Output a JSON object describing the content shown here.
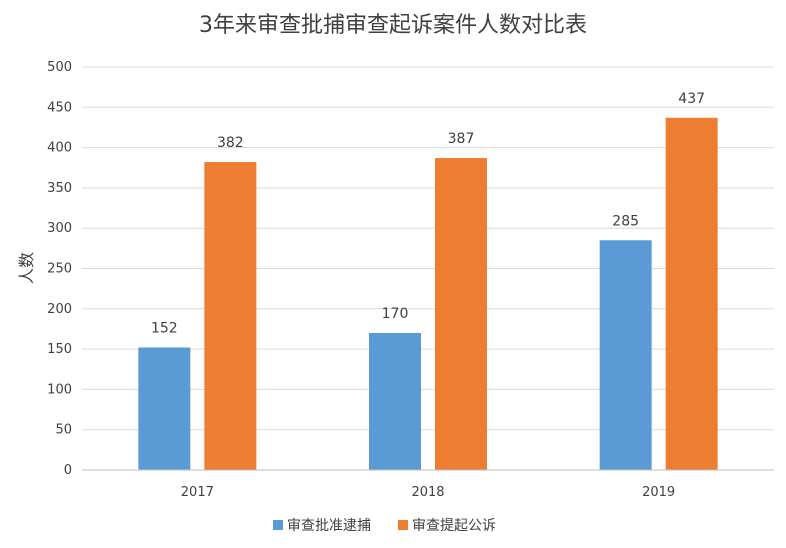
{
  "chart_data": {
    "type": "bar",
    "title": "3年来审查批捕审查起诉案件人数对比表",
    "ylabel": "人数",
    "xlabel": "",
    "categories": [
      "2017",
      "2018",
      "2019"
    ],
    "series": [
      {
        "name": "审查批准逮捕",
        "color": "#5B9BD5",
        "values": [
          152,
          170,
          285
        ]
      },
      {
        "name": "审查提起公诉",
        "color": "#ED7D31",
        "values": [
          382,
          387,
          437
        ]
      }
    ],
    "ylim": [
      0,
      500
    ],
    "yticks": [
      0,
      50,
      100,
      150,
      200,
      250,
      300,
      350,
      400,
      450,
      500
    ],
    "grid": true,
    "legend": "bottom",
    "data_labels": true
  }
}
